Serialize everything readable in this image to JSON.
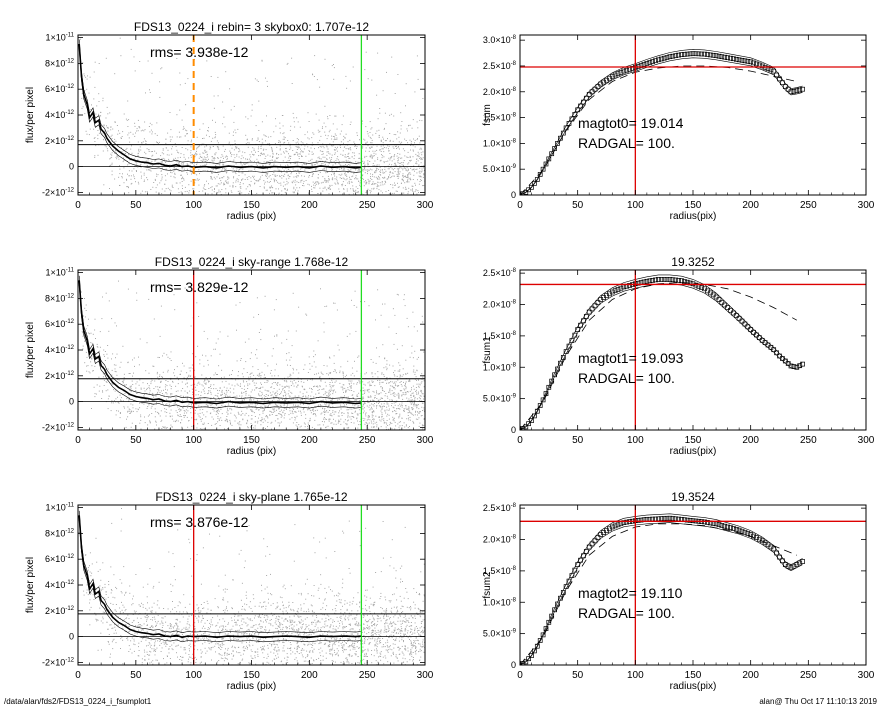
{
  "footer": {
    "path": "/data/alan/fds2/FDS13_0224_i_fsumplot1",
    "stamp": "alan@  Thu Oct 17 11:10:13 2019"
  },
  "colors": {
    "scatter": "#a8a8a8",
    "profile": "#000000",
    "vline_left_top": "#ff8c00",
    "vline_red": "#dd0000",
    "vline_green": "#22dd22",
    "hline_red": "#dd0000"
  },
  "chart_data": [
    {
      "type": "scatter",
      "title": "FDS13_0224_i rebin= 3    skybox0:  1.707e-12",
      "annotation": "rms= 3.938e-12",
      "xlabel": "radius (pix)",
      "ylabel": "flux/per pixel",
      "xlim": [
        0,
        300
      ],
      "ylim": [
        -2.2e-12,
        1.02e-11
      ],
      "xticks": [
        "0",
        "50",
        "100",
        "150",
        "200",
        "250",
        "300"
      ],
      "yticks": [
        {
          "v": -2e-12,
          "m": "-2×10",
          "e": "-12"
        },
        {
          "v": 0,
          "m": "0",
          "e": ""
        },
        {
          "v": 2e-12,
          "m": "2×10",
          "e": "-12"
        },
        {
          "v": 4e-12,
          "m": "4×10",
          "e": "-12"
        },
        {
          "v": 6e-12,
          "m": "6×10",
          "e": "-12"
        },
        {
          "v": 8e-12,
          "m": "8×10",
          "e": "-12"
        },
        {
          "v": 1e-11,
          "m": "1×10",
          "e": "-11"
        }
      ],
      "sky_level": 1.707e-12,
      "vlines": [
        {
          "x": 100,
          "color": "#ff8c00",
          "dashed": true
        },
        {
          "x": 245,
          "color": "#22dd22",
          "dashed": false
        }
      ],
      "profile": {
        "x": [
          1,
          3,
          5,
          8,
          10,
          13,
          15,
          18,
          20,
          23,
          25,
          30,
          35,
          40,
          45,
          50,
          55,
          60,
          65,
          70,
          75,
          80,
          85,
          90,
          95,
          100,
          110,
          120,
          130,
          140,
          150,
          160,
          170,
          180,
          190,
          200,
          210,
          220,
          230,
          240,
          245
        ],
        "y": [
          9.5e-12,
          7e-12,
          5.6e-12,
          4.8e-12,
          3.8e-12,
          4.2e-12,
          3.4e-12,
          3.6e-12,
          2.9e-12,
          2.6e-12,
          2.2e-12,
          1.6e-12,
          1.2e-12,
          9e-13,
          6e-13,
          4.5e-13,
          3.5e-13,
          3e-13,
          2e-13,
          2.5e-13,
          1e-13,
          5e-14,
          1.5e-13,
          0.0,
          5e-14,
          -5e-14,
          0.0,
          -1e-13,
          5e-14,
          -5e-14,
          0.0,
          -1e-13,
          0.0,
          -5e-14,
          0.0,
          -1e-13,
          5e-14,
          -5e-14,
          0.0,
          -1e-13,
          -5e-14
        ]
      }
    },
    {
      "type": "line",
      "title": "",
      "annotation_lines": [
        "magtot0=  19.014",
        "RADGAL=    100."
      ],
      "xlabel": "radius(pix)",
      "ylabel": "fsum",
      "xlim": [
        0,
        300
      ],
      "ylim": [
        0,
        3.1e-08
      ],
      "xticks": [
        "0",
        "50",
        "100",
        "150",
        "200",
        "250",
        "300"
      ],
      "yticks": [
        {
          "v": 0,
          "m": "0",
          "e": ""
        },
        {
          "v": 5e-09,
          "m": "5.0×10",
          "e": "-9"
        },
        {
          "v": 1e-08,
          "m": "1.0×10",
          "e": "-8"
        },
        {
          "v": 1.5e-08,
          "m": "1.5×10",
          "e": "-8"
        },
        {
          "v": 2e-08,
          "m": "2.0×10",
          "e": "-8"
        },
        {
          "v": 2.5e-08,
          "m": "2.5×10",
          "e": "-8"
        },
        {
          "v": 3e-08,
          "m": "3.0×10",
          "e": "-8"
        }
      ],
      "hline": 2.48e-08,
      "vline": 100,
      "curve": {
        "x": [
          0,
          5,
          10,
          15,
          20,
          25,
          30,
          40,
          50,
          60,
          70,
          80,
          90,
          100,
          110,
          120,
          130,
          140,
          150,
          160,
          170,
          180,
          190,
          200,
          210,
          220,
          225,
          230,
          235,
          240,
          245
        ],
        "y": [
          0,
          5e-10,
          1.5e-09,
          3e-09,
          5e-09,
          7e-09,
          9e-09,
          1.3e-08,
          1.65e-08,
          1.95e-08,
          2.15e-08,
          2.3e-08,
          2.4e-08,
          2.47e-08,
          2.55e-08,
          2.62e-08,
          2.68e-08,
          2.72e-08,
          2.74e-08,
          2.73e-08,
          2.7e-08,
          2.66e-08,
          2.62e-08,
          2.58e-08,
          2.5e-08,
          2.4e-08,
          2.25e-08,
          2.1e-08,
          2e-08,
          2.02e-08,
          2.05e-08
        ]
      },
      "dashed": {
        "x": [
          0,
          20,
          40,
          60,
          80,
          100,
          120,
          140,
          160,
          180,
          200,
          220,
          240
        ],
        "y": [
          0,
          4.8e-09,
          1.25e-08,
          1.85e-08,
          2.2e-08,
          2.38e-08,
          2.46e-08,
          2.5e-08,
          2.5e-08,
          2.47e-08,
          2.4e-08,
          2.3e-08,
          2.2e-08
        ]
      }
    },
    {
      "type": "scatter",
      "title": "FDS13_0224_i sky-range  1.768e-12",
      "annotation": "rms= 3.829e-12",
      "xlabel": "radius (pix)",
      "ylabel": "flux/per pixel",
      "xlim": [
        0,
        300
      ],
      "ylim": [
        -2.2e-12,
        1.02e-11
      ],
      "xticks": [
        "0",
        "50",
        "100",
        "150",
        "200",
        "250",
        "300"
      ],
      "yticks": [
        {
          "v": -2e-12,
          "m": "-2×10",
          "e": "-12"
        },
        {
          "v": 0,
          "m": "0",
          "e": ""
        },
        {
          "v": 2e-12,
          "m": "2×10",
          "e": "-12"
        },
        {
          "v": 4e-12,
          "m": "4×10",
          "e": "-12"
        },
        {
          "v": 6e-12,
          "m": "6×10",
          "e": "-12"
        },
        {
          "v": 8e-12,
          "m": "8×10",
          "e": "-12"
        },
        {
          "v": 1e-11,
          "m": "1×10",
          "e": "-11"
        }
      ],
      "sky_level": 1.768e-12,
      "vlines": [
        {
          "x": 100,
          "color": "#dd0000",
          "dashed": false
        },
        {
          "x": 245,
          "color": "#22dd22",
          "dashed": false
        }
      ],
      "profile": {
        "x": [
          1,
          3,
          5,
          8,
          10,
          13,
          15,
          18,
          20,
          23,
          25,
          30,
          35,
          40,
          45,
          50,
          55,
          60,
          65,
          70,
          75,
          80,
          85,
          90,
          95,
          100,
          110,
          120,
          130,
          140,
          150,
          160,
          170,
          180,
          190,
          200,
          210,
          220,
          230,
          240,
          245
        ],
        "y": [
          9.4e-12,
          6.9e-12,
          5.5e-12,
          4.7e-12,
          3.7e-12,
          4.1e-12,
          3.3e-12,
          3.5e-12,
          2.8e-12,
          2.5e-12,
          2.1e-12,
          1.5e-12,
          1.1e-12,
          8.5e-13,
          5.5e-13,
          4e-13,
          3e-13,
          2.5e-13,
          1.5e-13,
          2e-13,
          5e-14,
          0.0,
          1e-13,
          -5e-14,
          0.0,
          -1e-13,
          -5e-14,
          -1.5e-13,
          0.0,
          -1e-13,
          -5e-14,
          -1.5e-13,
          -5e-14,
          -1e-13,
          -5e-14,
          -1.5e-13,
          0.0,
          -1e-13,
          -5e-14,
          -1.5e-13,
          -1e-13
        ]
      }
    },
    {
      "type": "line",
      "title": "19.3252",
      "annotation_lines": [
        "magtot1=  19.093",
        "RADGAL=    100."
      ],
      "xlabel": "radius(pix)",
      "ylabel": "fsum1",
      "xlim": [
        0,
        300
      ],
      "ylim": [
        0,
        2.55e-08
      ],
      "xticks": [
        "0",
        "50",
        "100",
        "150",
        "200",
        "250",
        "300"
      ],
      "yticks": [
        {
          "v": 0,
          "m": "0",
          "e": ""
        },
        {
          "v": 5e-09,
          "m": "5.0×10",
          "e": "-9"
        },
        {
          "v": 1e-08,
          "m": "1.0×10",
          "e": "-8"
        },
        {
          "v": 1.5e-08,
          "m": "1.5×10",
          "e": "-8"
        },
        {
          "v": 2e-08,
          "m": "2.0×10",
          "e": "-8"
        },
        {
          "v": 2.5e-08,
          "m": "2.5×10",
          "e": "-8"
        }
      ],
      "hline": 2.32e-08,
      "vline": 100,
      "curve": {
        "x": [
          0,
          5,
          10,
          15,
          20,
          25,
          30,
          40,
          50,
          60,
          70,
          80,
          90,
          100,
          110,
          120,
          130,
          140,
          150,
          160,
          170,
          180,
          190,
          200,
          210,
          220,
          225,
          230,
          235,
          240,
          245
        ],
        "y": [
          0,
          5e-10,
          1.5e-09,
          3e-09,
          4.8e-09,
          6.8e-09,
          8.8e-09,
          1.25e-08,
          1.6e-08,
          1.88e-08,
          2.08e-08,
          2.2e-08,
          2.28e-08,
          2.33e-08,
          2.37e-08,
          2.4e-08,
          2.4e-08,
          2.38e-08,
          2.33e-08,
          2.25e-08,
          2.12e-08,
          1.95e-08,
          1.78e-08,
          1.6e-08,
          1.43e-08,
          1.28e-08,
          1.18e-08,
          1.1e-08,
          1.02e-08,
          1e-08,
          1.05e-08
        ]
      },
      "dashed": {
        "x": [
          0,
          20,
          40,
          60,
          80,
          100,
          120,
          140,
          160,
          180,
          200,
          220,
          240
        ],
        "y": [
          0,
          4.5e-09,
          1.18e-08,
          1.75e-08,
          2.08e-08,
          2.25e-08,
          2.33e-08,
          2.35e-08,
          2.32e-08,
          2.25e-08,
          2.12e-08,
          1.95e-08,
          1.75e-08
        ]
      }
    },
    {
      "type": "scatter",
      "title": "FDS13_0224_i sky-plane  1.765e-12",
      "annotation": "rms= 3.876e-12",
      "xlabel": "radius (pix)",
      "ylabel": "flux/per pixel",
      "xlim": [
        0,
        300
      ],
      "ylim": [
        -2.2e-12,
        1.02e-11
      ],
      "xticks": [
        "0",
        "50",
        "100",
        "150",
        "200",
        "250",
        "300"
      ],
      "yticks": [
        {
          "v": -2e-12,
          "m": "-2×10",
          "e": "-12"
        },
        {
          "v": 0,
          "m": "0",
          "e": ""
        },
        {
          "v": 2e-12,
          "m": "2×10",
          "e": "-12"
        },
        {
          "v": 4e-12,
          "m": "4×10",
          "e": "-12"
        },
        {
          "v": 6e-12,
          "m": "6×10",
          "e": "-12"
        },
        {
          "v": 8e-12,
          "m": "8×10",
          "e": "-12"
        },
        {
          "v": 1e-11,
          "m": "1×10",
          "e": "-11"
        }
      ],
      "sky_level": 1.765e-12,
      "vlines": [
        {
          "x": 100,
          "color": "#dd0000",
          "dashed": false
        },
        {
          "x": 245,
          "color": "#22dd22",
          "dashed": false
        }
      ],
      "profile": {
        "x": [
          1,
          3,
          5,
          8,
          10,
          13,
          15,
          18,
          20,
          23,
          25,
          30,
          35,
          40,
          45,
          50,
          55,
          60,
          65,
          70,
          75,
          80,
          85,
          90,
          95,
          100,
          110,
          120,
          130,
          140,
          150,
          160,
          170,
          180,
          190,
          200,
          210,
          220,
          230,
          240,
          245
        ],
        "y": [
          9.4e-12,
          6.9e-12,
          5.5e-12,
          4.7e-12,
          3.7e-12,
          4.1e-12,
          3.3e-12,
          3.5e-12,
          2.8e-12,
          2.5e-12,
          2.1e-12,
          1.5e-12,
          1.1e-12,
          8.5e-13,
          5.5e-13,
          4e-13,
          3e-13,
          2.5e-13,
          1.5e-13,
          2e-13,
          5e-14,
          0.0,
          1e-13,
          -5e-14,
          5e-14,
          0.0,
          5e-14,
          -5e-14,
          5e-14,
          0.0,
          5e-14,
          -5e-14,
          0.0,
          5e-14,
          0.0,
          -5e-14,
          5e-14,
          0.0,
          5e-14,
          0.0,
          5e-14
        ]
      }
    },
    {
      "type": "line",
      "title": "19.3524",
      "annotation_lines": [
        "magtot2=  19.110",
        "RADGAL=    100."
      ],
      "xlabel": "radius(pix)",
      "ylabel": "fsum2",
      "xlim": [
        0,
        300
      ],
      "ylim": [
        0,
        2.55e-08
      ],
      "xticks": [
        "0",
        "50",
        "100",
        "150",
        "200",
        "250",
        "300"
      ],
      "yticks": [
        {
          "v": 0,
          "m": "0",
          "e": ""
        },
        {
          "v": 5e-09,
          "m": "5.0×10",
          "e": "-9"
        },
        {
          "v": 1e-08,
          "m": "1.0×10",
          "e": "-8"
        },
        {
          "v": 1.5e-08,
          "m": "1.5×10",
          "e": "-8"
        },
        {
          "v": 2e-08,
          "m": "2.0×10",
          "e": "-8"
        },
        {
          "v": 2.5e-08,
          "m": "2.5×10",
          "e": "-8"
        }
      ],
      "hline": 2.29e-08,
      "vline": 100,
      "curve": {
        "x": [
          0,
          5,
          10,
          15,
          20,
          25,
          30,
          40,
          50,
          60,
          70,
          80,
          90,
          100,
          110,
          120,
          130,
          140,
          150,
          160,
          170,
          180,
          190,
          200,
          210,
          220,
          225,
          230,
          235,
          240,
          245
        ],
        "y": [
          0,
          5e-10,
          1.5e-09,
          3e-09,
          4.8e-09,
          6.8e-09,
          8.8e-09,
          1.25e-08,
          1.6e-08,
          1.88e-08,
          2.08e-08,
          2.2e-08,
          2.27e-08,
          2.3e-08,
          2.32e-08,
          2.33e-08,
          2.34e-08,
          2.32e-08,
          2.3e-08,
          2.28e-08,
          2.25e-08,
          2.2e-08,
          2.15e-08,
          2.08e-08,
          1.98e-08,
          1.85e-08,
          1.72e-08,
          1.6e-08,
          1.55e-08,
          1.6e-08,
          1.65e-08
        ]
      },
      "dashed": {
        "x": [
          0,
          20,
          40,
          60,
          80,
          100,
          120,
          140,
          160,
          180,
          200,
          220,
          240
        ],
        "y": [
          0,
          4.5e-09,
          1.18e-08,
          1.75e-08,
          2.05e-08,
          2.2e-08,
          2.25e-08,
          2.25e-08,
          2.22e-08,
          2.15e-08,
          2.05e-08,
          1.9e-08,
          1.75e-08
        ]
      }
    }
  ]
}
